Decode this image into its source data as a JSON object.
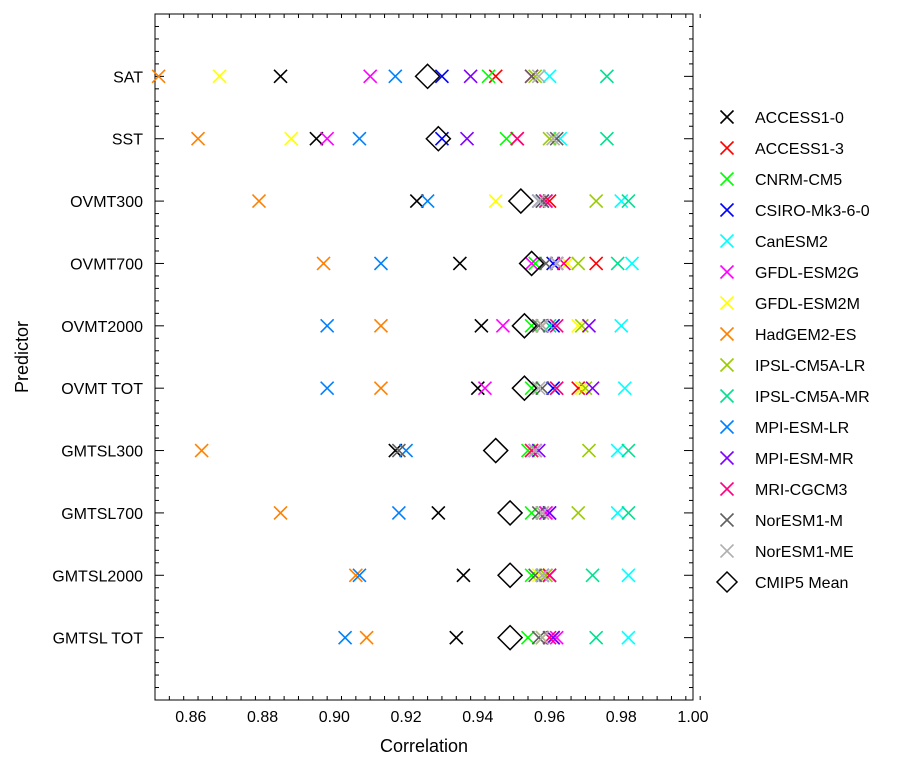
{
  "chart_data": {
    "type": "scatter",
    "xlabel": "Correlation",
    "ylabel": "Predictor",
    "xlim": [
      0.85,
      1.0
    ],
    "xticks": [
      "0.86",
      "0.88",
      "0.90",
      "0.92",
      "0.94",
      "0.96",
      "0.98",
      "1.00"
    ],
    "categories": [
      "SAT",
      "SST",
      "OVMT300",
      "OVMT700",
      "OVMT2000",
      "OVMT TOT",
      "GMTSL300",
      "GMTSL700",
      "GMTSL2000",
      "GMTSL TOT"
    ],
    "legend_position": "right",
    "series": [
      {
        "name": "ACCESS1-0",
        "color": "#000000",
        "marker": "x",
        "values": [
          0.885,
          0.895,
          0.923,
          0.935,
          0.941,
          0.94,
          0.917,
          0.929,
          0.936,
          0.934
        ]
      },
      {
        "name": "ACCESS1-3",
        "color": "#ff0000",
        "marker": "x",
        "values": [
          0.945,
          0.951,
          0.96,
          0.973,
          0.958,
          0.968,
          0.955,
          0.959,
          0.96,
          0.961
        ]
      },
      {
        "name": "CNRM-CM5",
        "color": "#00ff00",
        "marker": "x",
        "values": [
          0.943,
          0.948,
          0.957,
          0.956,
          0.955,
          0.955,
          0.954,
          0.955,
          0.955,
          0.954
        ]
      },
      {
        "name": "CSIRO-Mk3-6-0",
        "color": "#0000ff",
        "marker": "x",
        "values": [
          0.93,
          0.93,
          0.958,
          0.961,
          0.961,
          0.961,
          0.956,
          0.96,
          0.958,
          0.961
        ]
      },
      {
        "name": "CanESM2",
        "color": "#00ffff",
        "marker": "x",
        "values": [
          0.96,
          0.963,
          0.98,
          0.983,
          0.98,
          0.981,
          0.979,
          0.979,
          0.982,
          0.982
        ]
      },
      {
        "name": "GFDL-ESM2G",
        "color": "#ff00ff",
        "marker": "x",
        "values": [
          0.91,
          0.898,
          0.959,
          0.955,
          0.947,
          0.942,
          0.956,
          0.959,
          0.959,
          0.962
        ]
      },
      {
        "name": "GFDL-ESM2M",
        "color": "#ffff00",
        "marker": "x",
        "values": [
          0.868,
          0.888,
          0.945,
          0.965,
          0.968,
          0.969,
          0.955,
          0.958,
          0.957,
          0.958
        ]
      },
      {
        "name": "HadGEM2-ES",
        "color": "#ff8000",
        "marker": "x",
        "values": [
          0.851,
          0.862,
          0.879,
          0.897,
          0.913,
          0.913,
          0.863,
          0.885,
          0.906,
          0.909
        ]
      },
      {
        "name": "IPSL-CM5A-LR",
        "color": "#99cc00",
        "marker": "x",
        "values": [
          0.956,
          0.96,
          0.973,
          0.968,
          0.969,
          0.97,
          0.971,
          0.968,
          0.959,
          0.958
        ]
      },
      {
        "name": "IPSL-CM5A-MR",
        "color": "#00e090",
        "marker": "x",
        "values": [
          0.976,
          0.976,
          0.982,
          0.979,
          0.96,
          0.962,
          0.982,
          0.982,
          0.972,
          0.973
        ]
      },
      {
        "name": "MPI-ESM-LR",
        "color": "#0080ff",
        "marker": "x",
        "values": [
          0.917,
          0.907,
          0.926,
          0.913,
          0.898,
          0.898,
          0.92,
          0.918,
          0.907,
          0.903
        ]
      },
      {
        "name": "MPI-ESM-MR",
        "color": "#8000ff",
        "marker": "x",
        "values": [
          0.938,
          0.937,
          0.957,
          0.962,
          0.971,
          0.972,
          0.957,
          0.96,
          0.96,
          0.961
        ]
      },
      {
        "name": "MRI-CGCM3",
        "color": "#ff0080",
        "marker": "x",
        "values": [
          0.955,
          0.951,
          0.959,
          0.964,
          0.962,
          0.962,
          0.955,
          0.958,
          0.96,
          0.96
        ]
      },
      {
        "name": "NorESM1-M",
        "color": "#606060",
        "marker": "x",
        "values": [
          0.955,
          0.962,
          0.958,
          0.959,
          0.957,
          0.958,
          0.918,
          0.957,
          0.956,
          0.957
        ]
      },
      {
        "name": "NorESM1-ME",
        "color": "#b0b0b0",
        "marker": "x",
        "values": [
          0.957,
          0.961,
          0.957,
          0.962,
          0.958,
          0.957,
          0.956,
          0.958,
          0.958,
          0.958
        ]
      },
      {
        "name": "CMIP5 Mean",
        "color": "#000000",
        "marker": "diamond",
        "values": [
          0.926,
          0.929,
          0.952,
          0.955,
          0.953,
          0.953,
          0.945,
          0.949,
          0.949,
          0.949
        ]
      }
    ]
  }
}
